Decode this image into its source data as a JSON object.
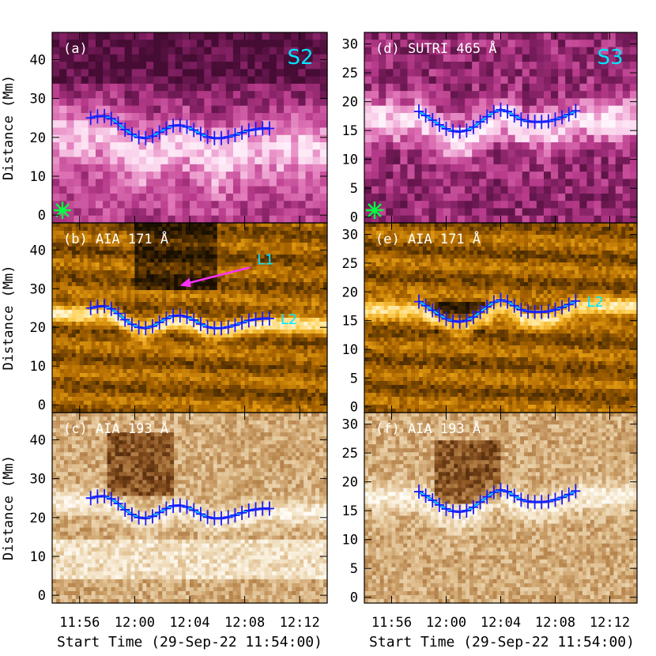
{
  "figure": {
    "xlabel": "Start Time (29-Sep-22 11:54:00)",
    "ylabel": "Distance (Mm)",
    "x_ticks": [
      "11:56",
      "12:00",
      "12:04",
      "12:08",
      "12:12"
    ],
    "colors": {
      "fit_line": "#00e5ff",
      "marker": "#1a1aff",
      "panel_label": "#ffffff",
      "slit_tag": "#00e5ff",
      "star": "#00ff40",
      "arrow": "#ff30ff",
      "L1": "#00e5ff",
      "L2": "#00e5ff"
    }
  },
  "chart_data": [
    {
      "id": "a",
      "type": "heatmap",
      "label": "(a)",
      "tag": "S2",
      "colormap": "magenta",
      "ylim": [
        -2,
        47
      ],
      "yticks": [
        0,
        10,
        20,
        30,
        40
      ],
      "xlim_min": [
        0,
        20
      ],
      "star": true,
      "series": [
        {
          "name": "",
          "x_min": [
            2.8,
            3.3,
            3.8,
            4.3,
            4.8,
            5.3,
            5.8,
            6.3,
            6.8,
            7.3,
            7.8,
            8.3,
            8.8,
            9.3,
            9.8,
            10.3,
            10.8,
            11.3,
            11.8,
            12.3,
            12.8,
            13.3,
            13.8,
            14.3,
            14.8,
            15.3,
            15.8
          ],
          "y": [
            25.0,
            25.4,
            25.5,
            24.8,
            23.6,
            22.0,
            20.8,
            20.0,
            19.8,
            20.3,
            21.3,
            22.3,
            23.0,
            23.1,
            22.7,
            21.9,
            20.9,
            20.1,
            19.8,
            19.8,
            20.1,
            20.6,
            21.2,
            21.8,
            22.1,
            22.3,
            22.3
          ]
        }
      ]
    },
    {
      "id": "b",
      "type": "heatmap",
      "label": "(b) AIA 171 Å",
      "colormap": "gold",
      "ylim": [
        -2,
        47
      ],
      "yticks": [
        0,
        10,
        20,
        30,
        40
      ],
      "xlim_min": [
        0,
        20
      ],
      "annotations": [
        {
          "text": "L1"
        },
        {
          "text": "L2"
        }
      ],
      "series": [
        {
          "name": "L2",
          "x_min": [
            2.8,
            3.3,
            3.8,
            4.3,
            4.8,
            5.3,
            5.8,
            6.3,
            6.8,
            7.3,
            7.8,
            8.3,
            8.8,
            9.3,
            9.8,
            10.3,
            10.8,
            11.3,
            11.8,
            12.3,
            12.8,
            13.3,
            13.8,
            14.3,
            14.8,
            15.3,
            15.8
          ],
          "y": [
            25.0,
            25.4,
            25.5,
            24.8,
            23.6,
            22.0,
            20.8,
            20.0,
            19.8,
            20.3,
            21.3,
            22.3,
            23.0,
            23.1,
            22.7,
            21.9,
            20.9,
            20.1,
            19.8,
            19.8,
            20.1,
            20.6,
            21.2,
            21.8,
            22.1,
            22.3,
            22.3
          ]
        }
      ]
    },
    {
      "id": "c",
      "type": "heatmap",
      "label": "(c) AIA 193 Å",
      "colormap": "brown",
      "ylim": [
        -2,
        47
      ],
      "yticks": [
        0,
        10,
        20,
        30,
        40
      ],
      "xlim_min": [
        0,
        20
      ],
      "series": [
        {
          "name": "",
          "x_min": [
            2.8,
            3.3,
            3.8,
            4.3,
            4.8,
            5.3,
            5.8,
            6.3,
            6.8,
            7.3,
            7.8,
            8.3,
            8.8,
            9.3,
            9.8,
            10.3,
            10.8,
            11.3,
            11.8,
            12.3,
            12.8,
            13.3,
            13.8,
            14.3,
            14.8,
            15.3,
            15.8
          ],
          "y": [
            25.0,
            25.4,
            25.5,
            24.8,
            23.6,
            22.0,
            20.8,
            20.0,
            19.8,
            20.3,
            21.3,
            22.3,
            23.0,
            23.1,
            22.7,
            21.9,
            20.9,
            20.1,
            19.8,
            19.8,
            20.1,
            20.6,
            21.2,
            21.8,
            22.1,
            22.3,
            22.3
          ]
        }
      ]
    },
    {
      "id": "d",
      "type": "heatmap",
      "label": "(d) SUTRI 465 Å",
      "tag": "S3",
      "colormap": "magenta",
      "ylim": [
        -1,
        32
      ],
      "yticks": [
        0,
        5,
        10,
        15,
        20,
        25,
        30
      ],
      "xlim_min": [
        0,
        20
      ],
      "star": true,
      "series": [
        {
          "name": "",
          "x_min": [
            4.0,
            4.5,
            5.0,
            5.5,
            6.0,
            6.5,
            7.0,
            7.5,
            8.0,
            8.5,
            9.0,
            9.5,
            10.0,
            10.5,
            11.0,
            11.5,
            12.0,
            12.5,
            13.0,
            13.5,
            14.0,
            14.5,
            15.0,
            15.5
          ],
          "y": [
            18.3,
            17.6,
            16.8,
            16.0,
            15.3,
            14.9,
            14.8,
            15.0,
            15.6,
            16.5,
            17.4,
            18.2,
            18.6,
            18.3,
            17.6,
            16.9,
            16.6,
            16.5,
            16.5,
            16.6,
            16.9,
            17.3,
            17.8,
            18.4
          ]
        }
      ]
    },
    {
      "id": "e",
      "type": "heatmap",
      "label": "(e) AIA 171 Å",
      "colormap": "gold",
      "ylim": [
        -1,
        32
      ],
      "yticks": [
        0,
        5,
        10,
        15,
        20,
        25,
        30
      ],
      "xlim_min": [
        0,
        20
      ],
      "annotations": [
        {
          "text": "L2"
        }
      ],
      "series": [
        {
          "name": "L2",
          "x_min": [
            4.0,
            4.5,
            5.0,
            5.5,
            6.0,
            6.5,
            7.0,
            7.5,
            8.0,
            8.5,
            9.0,
            9.5,
            10.0,
            10.5,
            11.0,
            11.5,
            12.0,
            12.5,
            13.0,
            13.5,
            14.0,
            14.5,
            15.0,
            15.5
          ],
          "y": [
            18.3,
            17.6,
            16.8,
            16.0,
            15.3,
            14.9,
            14.8,
            15.0,
            15.6,
            16.5,
            17.4,
            18.2,
            18.6,
            18.3,
            17.6,
            16.9,
            16.6,
            16.5,
            16.5,
            16.6,
            16.9,
            17.3,
            17.8,
            18.4
          ]
        }
      ]
    },
    {
      "id": "f",
      "type": "heatmap",
      "label": "(f) AIA 193 Å",
      "colormap": "brown",
      "ylim": [
        -1,
        32
      ],
      "yticks": [
        0,
        5,
        10,
        15,
        20,
        25,
        30
      ],
      "xlim_min": [
        0,
        20
      ],
      "series": [
        {
          "name": "",
          "x_min": [
            4.0,
            4.5,
            5.0,
            5.5,
            6.0,
            6.5,
            7.0,
            7.5,
            8.0,
            8.5,
            9.0,
            9.5,
            10.0,
            10.5,
            11.0,
            11.5,
            12.0,
            12.5,
            13.0,
            13.5,
            14.0,
            14.5,
            15.0,
            15.5
          ],
          "y": [
            18.3,
            17.6,
            16.8,
            16.0,
            15.3,
            14.9,
            14.8,
            15.0,
            15.6,
            16.5,
            17.4,
            18.2,
            18.6,
            18.3,
            17.6,
            16.9,
            16.6,
            16.5,
            16.5,
            16.6,
            16.9,
            17.3,
            17.8,
            18.4
          ]
        }
      ]
    }
  ]
}
